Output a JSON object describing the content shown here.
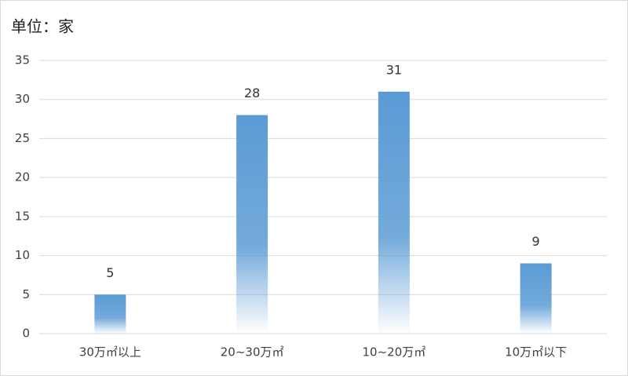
{
  "chart_data": {
    "type": "bar",
    "title": "单位：家",
    "categories": [
      "30万㎡以上",
      "20~30万㎡",
      "10~20万㎡",
      "10万㎡以下"
    ],
    "values": [
      5,
      28,
      31,
      9
    ],
    "color": "#5b9bd5",
    "ylim": [
      0,
      35
    ],
    "yticks": [
      0,
      5,
      10,
      15,
      20,
      25,
      30,
      35
    ],
    "grid": true
  }
}
